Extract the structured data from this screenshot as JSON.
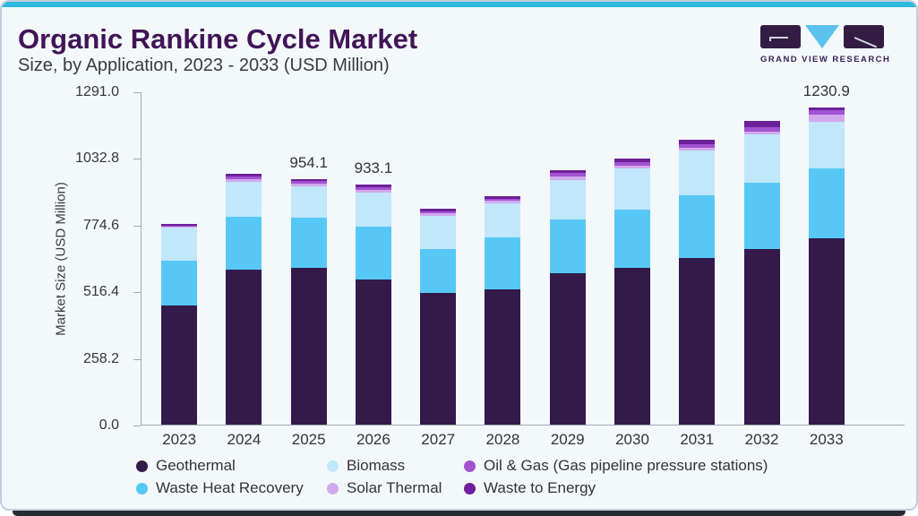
{
  "header": {
    "title": "Organic Rankine Cycle Market",
    "subtitle": "Size, by Application, 2023 - 2033 (USD Million)"
  },
  "logo": {
    "brand": "GRAND VIEW RESEARCH",
    "tile_color": "#331c44",
    "triangle_color": "#5bc2ee"
  },
  "chart_data": {
    "type": "bar",
    "stacked": true,
    "title": "Organic Rankine Cycle Market Size, by Application, 2023 - 2033 (USD Million)",
    "ylabel": "Market Size (USD Million)",
    "xlabel": "",
    "ylim": [
      0,
      1291.0
    ],
    "grid": false,
    "legend_position": "bottom",
    "yticks": [
      {
        "value": 0.0,
        "label": "0.0"
      },
      {
        "value": 258.2,
        "label": "258.2"
      },
      {
        "value": 516.4,
        "label": "516.4"
      },
      {
        "value": 774.6,
        "label": "774.6"
      },
      {
        "value": 1032.8,
        "label": "1032.8"
      },
      {
        "value": 1291.0,
        "label": "1291.0"
      }
    ],
    "categories": [
      "2023",
      "2024",
      "2025",
      "2026",
      "2027",
      "2028",
      "2029",
      "2030",
      "2031",
      "2032",
      "2033"
    ],
    "series": [
      {
        "name": "Geothermal",
        "color": "#331a4a",
        "values": [
          463.0,
          601.4,
          610.0,
          565.1,
          510.7,
          526.3,
          588.2,
          609.6,
          647.8,
          683.4,
          724.6
        ]
      },
      {
        "name": "Waste Heat Recovery",
        "color": "#57c8f5",
        "values": [
          174.0,
          207.1,
          193.5,
          204.7,
          172.8,
          202.1,
          209.6,
          226.1,
          241.4,
          257.1,
          270.2
        ]
      },
      {
        "name": "Biomass",
        "color": "#c0e7fa",
        "values": [
          127.0,
          133.2,
          120.6,
          130.3,
          128.6,
          130.0,
          151.1,
          158.6,
          175.0,
          185.7,
          183.2
        ]
      },
      {
        "name": "Solar Thermal",
        "color": "#d2a9ed",
        "values": [
          4.6,
          10.7,
          13.5,
          12.0,
          9.5,
          11.9,
          14.3,
          11.9,
          12.1,
          13.1,
          25.7
        ]
      },
      {
        "name": "Oil & Gas (Gas pipeline pressure stations)",
        "color": "#a353cf",
        "values": [
          4.8,
          10.7,
          9.9,
          11.0,
          8.3,
          8.3,
          13.2,
          11.9,
          11.9,
          15.6,
          16.6
        ]
      },
      {
        "name": "Waste to Energy",
        "color": "#6c2099",
        "values": [
          4.9,
          11.8,
          6.6,
          10.0,
          9.5,
          9.5,
          11.9,
          14.3,
          18.9,
          23.8,
          10.6
        ]
      }
    ],
    "bar_total_labels": [
      "",
      "",
      "954.1",
      "933.1",
      "",
      "",
      "",
      "",
      "",
      "",
      "1230.9"
    ],
    "totals": [
      778.3,
      974.9,
      954.1,
      933.1,
      839.4,
      888.1,
      988.3,
      1032.4,
      1107.1,
      1178.7,
      1230.9
    ],
    "legend_rows": [
      [
        {
          "name": "Geothermal",
          "color": "#331a4a"
        },
        {
          "name": "Biomass",
          "color": "#c0e7fa"
        },
        {
          "name": "Oil & Gas (Gas pipeline pressure stations)",
          "color": "#a353cf"
        }
      ],
      [
        {
          "name": "Waste Heat Recovery",
          "color": "#57c8f5"
        },
        {
          "name": "Solar Thermal",
          "color": "#d2a9ed"
        },
        {
          "name": "Waste to Energy",
          "color": "#6c2099"
        }
      ]
    ]
  }
}
